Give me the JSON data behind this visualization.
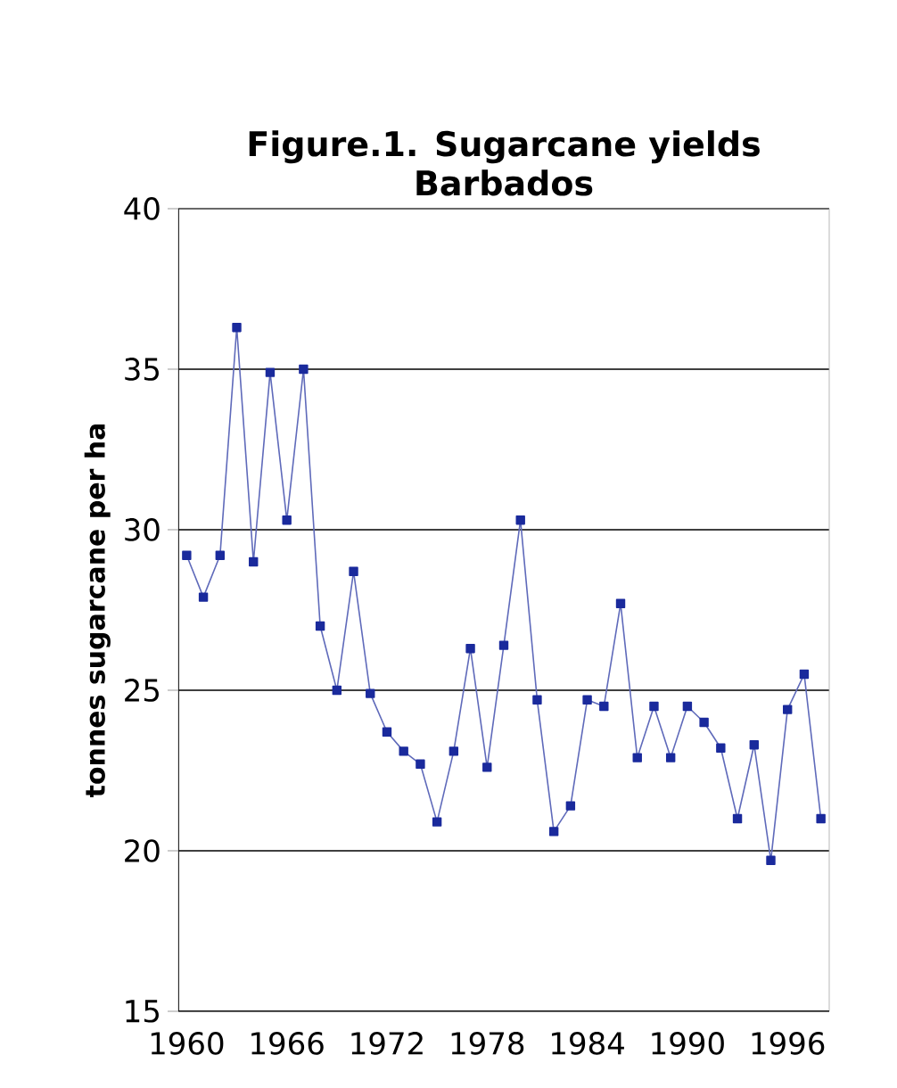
{
  "chart_data": {
    "type": "line",
    "title": "Figure.1.  Sugarcane  yields\nBarbados",
    "ylabel": "tonnes sugarcane per ha",
    "categories": [
      "1960",
      null,
      null,
      null,
      null,
      null,
      "1966",
      null,
      null,
      null,
      null,
      null,
      "1972",
      null,
      null,
      null,
      null,
      null,
      "1978",
      null,
      null,
      null,
      null,
      null,
      "1984",
      null,
      null,
      null,
      null,
      null,
      "1990",
      null,
      null,
      null,
      null,
      null,
      "1996",
      null,
      null
    ],
    "series": [
      {
        "color": "#1a2a9c",
        "values": [
          29.2,
          27.9,
          29.2,
          36.3,
          29.0,
          34.9,
          30.3,
          35.0,
          27.0,
          25.0,
          28.7,
          24.9,
          23.7,
          23.1,
          22.7,
          20.9,
          23.1,
          26.3,
          22.6,
          26.4,
          30.3,
          24.7,
          20.6,
          21.4,
          24.7,
          24.5,
          27.7,
          22.9,
          24.5,
          22.9,
          24.5,
          24.0,
          23.2,
          21.0,
          23.3,
          19.7,
          24.4,
          25.5,
          21.0
        ]
      }
    ],
    "ylim": [
      15,
      40
    ],
    "yticks": [
      15,
      20,
      25,
      30,
      35,
      40
    ],
    "grid": "y",
    "marker": "square"
  }
}
